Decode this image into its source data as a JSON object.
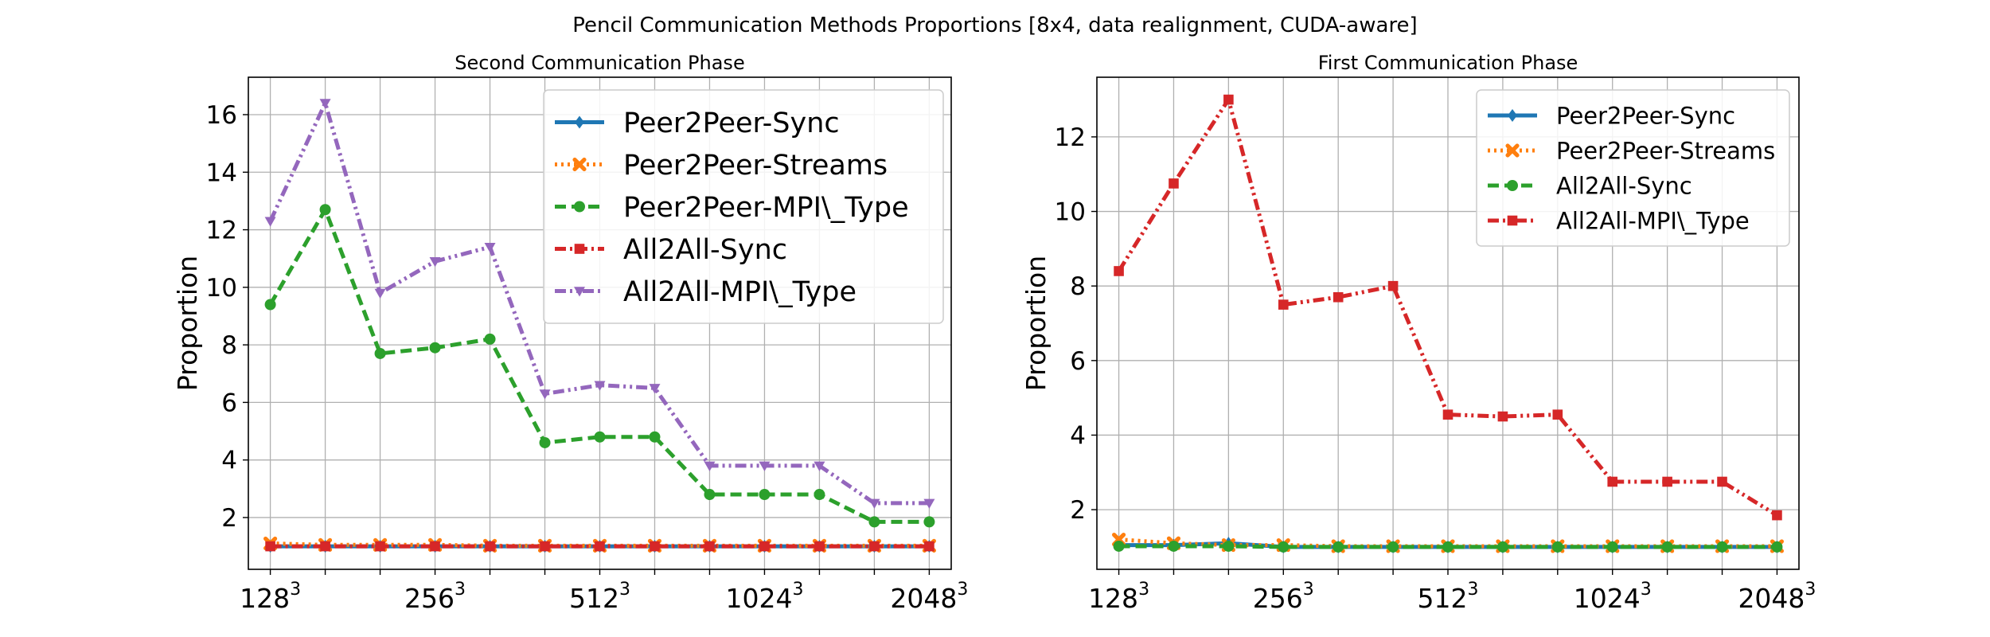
{
  "figure": {
    "title": "Pencil Communication Methods Proportions [8x4, data realignment, CUDA-aware]"
  },
  "chart_data": [
    {
      "type": "line",
      "title": "Second Communication Phase",
      "xlabel": "",
      "ylabel": "Proportion",
      "x": [
        1,
        2,
        3,
        4,
        5,
        6,
        7,
        8,
        9,
        10,
        11,
        12,
        13
      ],
      "xticks": [
        {
          "x": 1,
          "base": "128",
          "exp": "3"
        },
        {
          "x": 4,
          "base": "256",
          "exp": "3"
        },
        {
          "x": 7,
          "base": "512",
          "exp": "3"
        },
        {
          "x": 10,
          "base": "1024",
          "exp": "3"
        },
        {
          "x": 13,
          "base": "2048",
          "exp": "3"
        }
      ],
      "ylim": [
        0.2,
        17.3
      ],
      "yticks": [
        2,
        4,
        6,
        8,
        10,
        12,
        14,
        16
      ],
      "grid": true,
      "legend": "top-right",
      "series": [
        {
          "name": "Peer2Peer-Sync",
          "color": "#1f77b4",
          "marker": "diamond",
          "dash": "solid",
          "values": [
            1.0,
            1.0,
            1.0,
            1.0,
            1.0,
            1.0,
            1.0,
            1.0,
            1.0,
            1.0,
            1.0,
            1.0,
            1.0
          ]
        },
        {
          "name": "Peer2Peer-Streams",
          "color": "#ff7f0e",
          "marker": "x",
          "dash": "dotted",
          "values": [
            1.1,
            1.05,
            1.05,
            1.05,
            1.02,
            1.02,
            1.02,
            1.02,
            1.02,
            1.02,
            1.02,
            1.02,
            1.02
          ]
        },
        {
          "name": "Peer2Peer-MPI\\_Type",
          "color": "#2ca02c",
          "marker": "circle",
          "dash": "dashed",
          "values": [
            9.4,
            12.7,
            7.7,
            7.9,
            8.2,
            4.6,
            4.8,
            4.8,
            2.8,
            2.8,
            2.8,
            1.85,
            1.85
          ]
        },
        {
          "name": "All2All-Sync",
          "color": "#d62728",
          "marker": "square",
          "dash": "dashdot",
          "values": [
            1.0,
            1.0,
            1.0,
            1.0,
            1.0,
            1.0,
            1.0,
            1.0,
            1.0,
            1.0,
            1.0,
            1.0,
            1.0
          ]
        },
        {
          "name": "All2All-MPI\\_Type",
          "color": "#9467bd",
          "marker": "triangle-down",
          "dash": "dashdotdot",
          "values": [
            12.3,
            16.4,
            9.8,
            10.9,
            11.4,
            6.3,
            6.6,
            6.5,
            3.8,
            3.8,
            3.8,
            2.5,
            2.5
          ]
        }
      ]
    },
    {
      "type": "line",
      "title": "First Communication Phase",
      "xlabel": "",
      "ylabel": "Proportion",
      "x": [
        1,
        2,
        3,
        4,
        5,
        6,
        7,
        8,
        9,
        10,
        11,
        12,
        13
      ],
      "xticks": [
        {
          "x": 1,
          "base": "128",
          "exp": "3"
        },
        {
          "x": 4,
          "base": "256",
          "exp": "3"
        },
        {
          "x": 7,
          "base": "512",
          "exp": "3"
        },
        {
          "x": 10,
          "base": "1024",
          "exp": "3"
        },
        {
          "x": 13,
          "base": "2048",
          "exp": "3"
        }
      ],
      "ylim": [
        0.4,
        13.6
      ],
      "yticks": [
        2,
        4,
        6,
        8,
        10,
        12
      ],
      "grid": true,
      "legend": "top-right",
      "series": [
        {
          "name": "Peer2Peer-Sync",
          "color": "#1f77b4",
          "marker": "diamond",
          "dash": "solid",
          "values": [
            1.05,
            1.05,
            1.1,
            1.0,
            1.0,
            1.0,
            1.0,
            1.0,
            1.0,
            1.0,
            1.0,
            1.0,
            1.0
          ]
        },
        {
          "name": "Peer2Peer-Streams",
          "color": "#ff7f0e",
          "marker": "x",
          "dash": "dotted",
          "values": [
            1.2,
            1.1,
            1.05,
            1.05,
            1.02,
            1.02,
            1.02,
            1.02,
            1.02,
            1.02,
            1.02,
            1.02,
            1.02
          ]
        },
        {
          "name": "All2All-Sync",
          "color": "#2ca02c",
          "marker": "circle",
          "dash": "dashed",
          "values": [
            1.02,
            1.02,
            1.02,
            1.0,
            1.0,
            1.0,
            1.0,
            1.0,
            1.0,
            1.0,
            1.0,
            1.0,
            1.0
          ]
        },
        {
          "name": "All2All-MPI\\_Type",
          "color": "#d62728",
          "marker": "square",
          "dash": "dashdotdot",
          "values": [
            8.4,
            10.75,
            13.0,
            7.5,
            7.7,
            8.0,
            4.55,
            4.5,
            4.55,
            2.75,
            2.75,
            2.75,
            1.85
          ]
        }
      ]
    }
  ]
}
